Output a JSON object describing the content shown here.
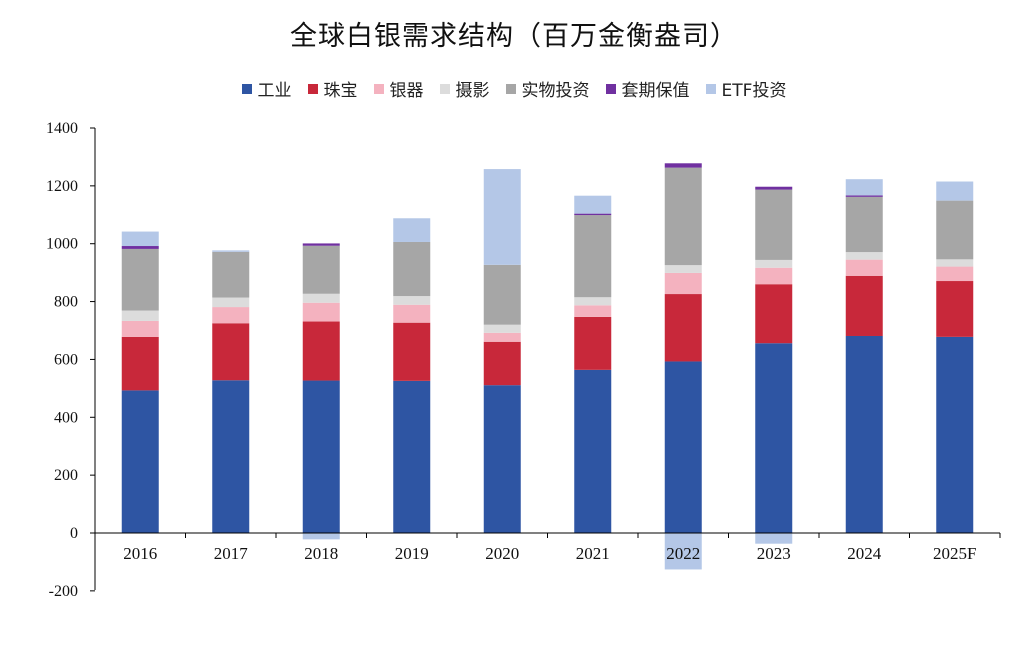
{
  "chart_data": {
    "type": "bar",
    "stacked": true,
    "title": "全球白银需求结构（百万金衡盎司）",
    "categories": [
      "2016",
      "2017",
      "2018",
      "2019",
      "2020",
      "2021",
      "2022",
      "2023",
      "2024",
      "2025F"
    ],
    "ylim": [
      -200,
      1400
    ],
    "yticks": [
      -200,
      0,
      200,
      400,
      600,
      800,
      1000,
      1200,
      1400
    ],
    "ytick_labels": [
      "-200",
      "0",
      "200",
      "400",
      "600",
      "800",
      "1000",
      "1200",
      "1400"
    ],
    "legend_position": "top-center",
    "series": [
      {
        "name": "工业",
        "color": "#2e55a3",
        "values": [
          493,
          528,
          527,
          526,
          511,
          564,
          593,
          656,
          681,
          678
        ]
      },
      {
        "name": "珠宝",
        "color": "#c8283a",
        "values": [
          185,
          197,
          204,
          201,
          150,
          183,
          233,
          204,
          208,
          193
        ]
      },
      {
        "name": "银器",
        "color": "#f4b2bf",
        "values": [
          55,
          56,
          65,
          62,
          31,
          40,
          73,
          57,
          56,
          50
        ]
      },
      {
        "name": "摄影",
        "color": "#dcdcdc",
        "values": [
          36,
          33,
          31,
          30,
          28,
          28,
          27,
          27,
          26,
          25
        ]
      },
      {
        "name": "实物投资",
        "color": "#a6a6a6",
        "values": [
          213,
          158,
          166,
          187,
          207,
          284,
          337,
          243,
          191,
          203
        ]
      },
      {
        "name": "套期保值",
        "color": "#7030a0",
        "values": [
          10,
          0,
          8,
          0,
          0,
          5,
          15,
          10,
          5,
          0
        ]
      },
      {
        "name": "ETF投资",
        "color": "#b4c7e7",
        "values": [
          50,
          5,
          -22,
          82,
          331,
          62,
          -126,
          -37,
          56,
          66
        ]
      }
    ]
  }
}
